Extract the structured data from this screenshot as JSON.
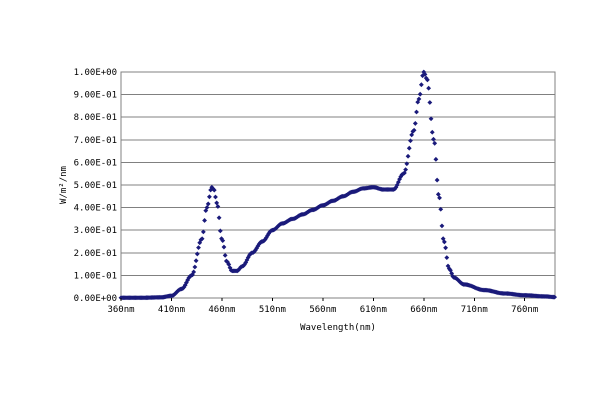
{
  "chart_data": {
    "type": "scatter",
    "xlabel": "Wavelength(nm)",
    "ylabel": "W/m²/nm",
    "xlim": [
      360,
      790
    ],
    "ylim": [
      0,
      1.0
    ],
    "x_ticks": [
      {
        "value": 360,
        "label": "360nm"
      },
      {
        "value": 410,
        "label": "410nm"
      },
      {
        "value": 460,
        "label": "460nm"
      },
      {
        "value": 510,
        "label": "510nm"
      },
      {
        "value": 560,
        "label": "560nm"
      },
      {
        "value": 610,
        "label": "610nm"
      },
      {
        "value": 660,
        "label": "660nm"
      },
      {
        "value": 710,
        "label": "710nm"
      },
      {
        "value": 760,
        "label": "760nm"
      }
    ],
    "y_ticks": [
      {
        "value": 0.0,
        "label": "0.00E+00"
      },
      {
        "value": 0.1,
        "label": "1.00E-01"
      },
      {
        "value": 0.2,
        "label": "2.00E-01"
      },
      {
        "value": 0.3,
        "label": "3.00E-01"
      },
      {
        "value": 0.4,
        "label": "4.00E-01"
      },
      {
        "value": 0.5,
        "label": "5.00E-01"
      },
      {
        "value": 0.6,
        "label": "6.00E-01"
      },
      {
        "value": 0.7,
        "label": "7.00E-01"
      },
      {
        "value": 0.8,
        "label": "8.00E-01"
      },
      {
        "value": 0.9,
        "label": "9.00E-01"
      },
      {
        "value": 1.0,
        "label": "1.00E+00"
      }
    ],
    "grid": true,
    "legend": "none",
    "marker_color": "#1a1a7a",
    "series": [
      {
        "points": [
          [
            360,
            0.001
          ],
          [
            380,
            0.001
          ],
          [
            400,
            0.003
          ],
          [
            410,
            0.01
          ],
          [
            420,
            0.04
          ],
          [
            430,
            0.1
          ],
          [
            440,
            0.26
          ],
          [
            445,
            0.4
          ],
          [
            450,
            0.49
          ],
          [
            452,
            0.48
          ],
          [
            455,
            0.42
          ],
          [
            460,
            0.26
          ],
          [
            465,
            0.16
          ],
          [
            470,
            0.12
          ],
          [
            475,
            0.12
          ],
          [
            480,
            0.14
          ],
          [
            490,
            0.2
          ],
          [
            500,
            0.25
          ],
          [
            510,
            0.3
          ],
          [
            520,
            0.33
          ],
          [
            530,
            0.35
          ],
          [
            540,
            0.37
          ],
          [
            550,
            0.39
          ],
          [
            560,
            0.41
          ],
          [
            570,
            0.43
          ],
          [
            580,
            0.45
          ],
          [
            590,
            0.47
          ],
          [
            600,
            0.485
          ],
          [
            610,
            0.49
          ],
          [
            620,
            0.48
          ],
          [
            630,
            0.48
          ],
          [
            640,
            0.55
          ],
          [
            650,
            0.74
          ],
          [
            655,
            0.88
          ],
          [
            660,
            1.0
          ],
          [
            663,
            0.97
          ],
          [
            670,
            0.7
          ],
          [
            675,
            0.45
          ],
          [
            680,
            0.25
          ],
          [
            685,
            0.13
          ],
          [
            690,
            0.09
          ],
          [
            700,
            0.06
          ],
          [
            720,
            0.035
          ],
          [
            740,
            0.02
          ],
          [
            760,
            0.012
          ],
          [
            780,
            0.007
          ],
          [
            790,
            0.004
          ]
        ]
      }
    ]
  }
}
